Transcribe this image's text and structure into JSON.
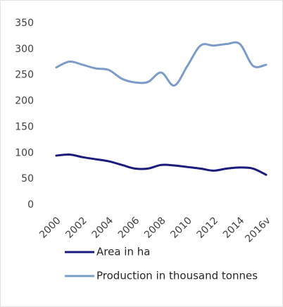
{
  "chart_data": {
    "type": "line",
    "categories": [
      "2000",
      null,
      "2002",
      null,
      "2004",
      null,
      "2006",
      null,
      "2008",
      null,
      "2010",
      null,
      "2012",
      null,
      "2014",
      null,
      "2016v"
    ],
    "series": [
      {
        "name": "Area in ha",
        "color": "#1b1b7d",
        "values": [
          95,
          97,
          92,
          88,
          84,
          77,
          70,
          70,
          77,
          76,
          73,
          70,
          66,
          70,
          72,
          70,
          58
        ]
      },
      {
        "name": "Production in thousand tonnes",
        "color": "#7b9cc8",
        "values": [
          265,
          276,
          270,
          263,
          260,
          243,
          236,
          237,
          255,
          230,
          268,
          307,
          307,
          310,
          310,
          268,
          270
        ]
      }
    ],
    "ylim": [
      0,
      350
    ],
    "yticks": [
      0,
      50,
      100,
      150,
      200,
      250,
      300,
      350
    ],
    "grid": false,
    "legend": "bottom"
  }
}
